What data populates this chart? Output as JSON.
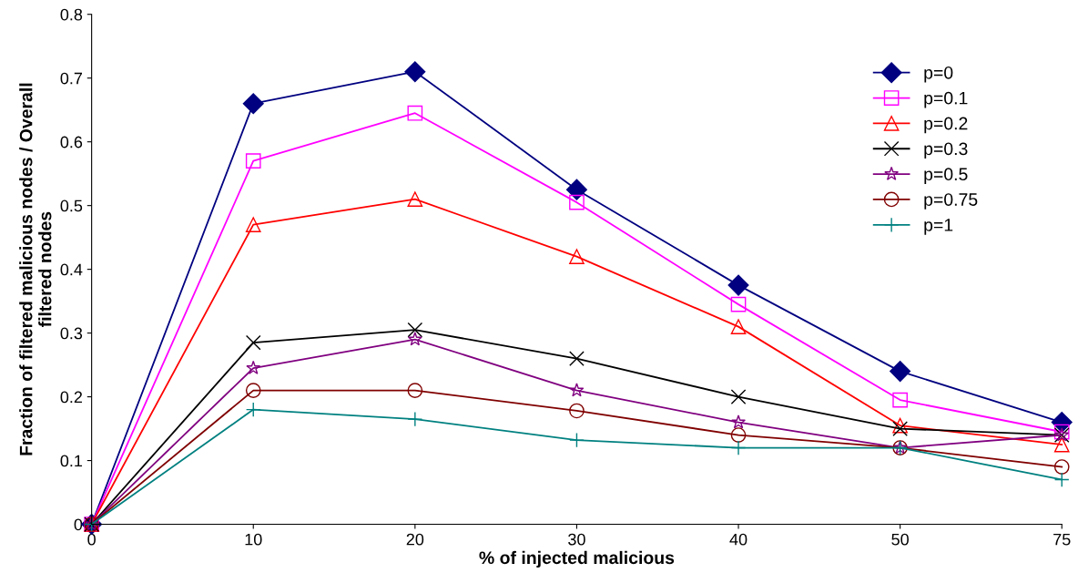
{
  "chart_data": {
    "type": "line",
    "xlabel": "% of injected malicious",
    "ylabel": "Fraction of filtered malicious nodes / Overall\nfiltered nodes",
    "categories": [
      "0",
      "10",
      "20",
      "30",
      "40",
      "50",
      "75"
    ],
    "ylim": [
      0,
      0.8
    ],
    "yticks": [
      0,
      0.1,
      0.2,
      0.3,
      0.4,
      0.5,
      0.6,
      0.7,
      0.8
    ],
    "grid": false,
    "legend": "top right",
    "line_style": "solid",
    "series": [
      {
        "name": "p=0",
        "color": "#000080",
        "marker": "diamond",
        "values": [
          0,
          0.66,
          0.71,
          0.525,
          0.375,
          0.24,
          0.16
        ]
      },
      {
        "name": "p=0.1",
        "color": "#ff00ff",
        "marker": "square",
        "values": [
          0,
          0.57,
          0.645,
          0.505,
          0.345,
          0.195,
          0.145
        ]
      },
      {
        "name": "p=0.2",
        "color": "#ff0000",
        "marker": "triangle",
        "values": [
          0,
          0.47,
          0.51,
          0.42,
          0.31,
          0.155,
          0.125
        ]
      },
      {
        "name": "p=0.3",
        "color": "#000000",
        "marker": "x",
        "values": [
          0,
          0.285,
          0.305,
          0.26,
          0.2,
          0.15,
          0.14
        ]
      },
      {
        "name": "p=0.5",
        "color": "#800080",
        "marker": "star",
        "values": [
          0,
          0.245,
          0.29,
          0.21,
          0.16,
          0.12,
          0.14
        ]
      },
      {
        "name": "p=0.75",
        "color": "#800000",
        "marker": "circle",
        "values": [
          0,
          0.21,
          0.21,
          0.178,
          0.14,
          0.12,
          0.09
        ]
      },
      {
        "name": "p=1",
        "color": "#008080",
        "marker": "cross",
        "values": [
          0,
          0.18,
          0.165,
          0.132,
          0.12,
          0.12,
          0.07
        ]
      }
    ]
  }
}
